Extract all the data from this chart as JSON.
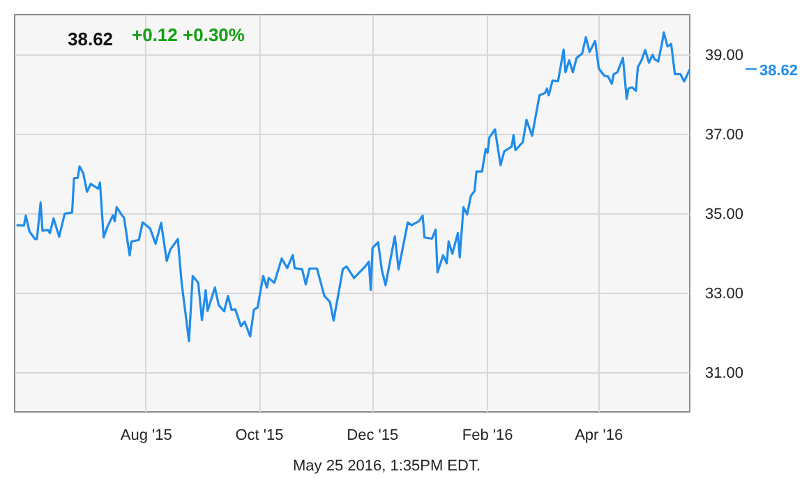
{
  "chart_data": {
    "type": "line",
    "title": "38.62",
    "subtitle": "+0.12  +0.30%",
    "x": [
      "2015-05-23",
      "2015-05-27",
      "2015-05-28",
      "2015-05-30",
      "2015-06-02",
      "2015-06-03",
      "2015-06-05",
      "2015-06-06",
      "2015-06-09",
      "2015-06-10",
      "2015-06-12",
      "2015-06-15",
      "2015-06-18",
      "2015-06-22",
      "2015-06-23",
      "2015-06-25",
      "2015-06-26",
      "2015-06-28",
      "2015-06-30",
      "2015-07-02",
      "2015-07-06",
      "2015-07-07",
      "2015-07-09",
      "2015-07-11",
      "2015-07-14",
      "2015-07-15",
      "2015-07-16",
      "2015-07-19",
      "2015-07-20",
      "2015-07-23",
      "2015-07-24",
      "2015-07-28",
      "2015-07-30",
      "2015-08-03",
      "2015-08-06",
      "2015-08-09",
      "2015-08-12",
      "2015-08-14",
      "2015-08-18",
      "2015-08-20",
      "2015-08-24",
      "2015-08-26",
      "2015-08-29",
      "2015-08-31",
      "2015-09-02",
      "2015-09-03",
      "2015-09-07",
      "2015-09-09",
      "2015-09-12",
      "2015-09-14",
      "2015-09-16",
      "2015-09-18",
      "2015-09-21",
      "2015-09-23",
      "2015-09-26",
      "2015-09-28",
      "2015-09-30",
      "2015-10-03",
      "2015-10-05",
      "2015-10-06",
      "2015-10-09",
      "2015-10-13",
      "2015-10-16",
      "2015-10-19",
      "2015-10-20",
      "2015-10-24",
      "2015-10-26",
      "2015-10-28",
      "2015-11-01",
      "2015-11-05",
      "2015-11-08",
      "2015-11-10",
      "2015-11-15",
      "2015-11-17",
      "2015-11-21",
      "2015-11-27",
      "2015-11-29",
      "2015-11-30",
      "2015-12-01",
      "2015-12-04",
      "2015-12-06",
      "2015-12-08",
      "2015-12-13",
      "2015-12-15",
      "2015-12-20",
      "2015-12-22",
      "2015-12-26",
      "2015-12-28",
      "2015-12-29",
      "2016-01-02",
      "2016-01-04",
      "2016-01-05",
      "2016-01-08",
      "2016-01-10",
      "2016-01-11",
      "2016-01-13",
      "2016-01-16",
      "2016-01-17",
      "2016-01-19",
      "2016-01-21",
      "2016-01-23",
      "2016-01-25",
      "2016-01-26",
      "2016-01-29",
      "2016-01-31",
      "2016-02-01",
      "2016-02-02",
      "2016-02-05",
      "2016-02-08",
      "2016-02-10",
      "2016-02-14",
      "2016-02-15",
      "2016-02-16",
      "2016-02-20",
      "2016-02-22",
      "2016-02-25",
      "2016-02-29",
      "2016-03-03",
      "2016-03-04",
      "2016-03-05",
      "2016-03-07",
      "2016-03-10",
      "2016-03-13",
      "2016-03-14",
      "2016-03-16",
      "2016-03-18",
      "2016-03-20",
      "2016-03-23",
      "2016-03-25",
      "2016-03-27",
      "2016-03-30",
      "2016-04-01",
      "2016-04-04",
      "2016-04-06",
      "2016-04-08",
      "2016-04-09",
      "2016-04-11",
      "2016-04-14",
      "2016-04-16",
      "2016-04-17",
      "2016-04-19",
      "2016-04-21",
      "2016-04-22",
      "2016-04-24",
      "2016-04-26",
      "2016-04-28",
      "2016-04-30",
      "2016-05-01",
      "2016-05-03",
      "2016-05-05",
      "2016-05-06",
      "2016-05-08",
      "2016-05-10",
      "2016-05-12",
      "2016-05-15",
      "2016-05-17",
      "2016-05-20"
    ],
    "series": [
      {
        "color": "#1f8ceb",
        "values": [
          34.7,
          34.69,
          34.94,
          34.54,
          34.35,
          34.35,
          35.27,
          34.56,
          34.58,
          34.5,
          34.87,
          34.41,
          34.99,
          35.02,
          35.88,
          35.89,
          36.18,
          36.01,
          35.54,
          35.74,
          35.62,
          35.77,
          34.39,
          34.66,
          34.95,
          34.8,
          35.15,
          34.94,
          34.89,
          33.94,
          34.29,
          34.33,
          34.77,
          34.62,
          34.23,
          34.76,
          33.8,
          34.09,
          34.35,
          33.27,
          31.78,
          33.42,
          33.25,
          32.31,
          33.06,
          32.54,
          33.13,
          32.69,
          32.53,
          32.92,
          32.57,
          32.58,
          32.16,
          32.27,
          31.9,
          32.57,
          32.63,
          33.42,
          33.13,
          33.37,
          33.25,
          33.86,
          33.62,
          33.95,
          33.62,
          33.59,
          33.21,
          33.61,
          33.61,
          32.92,
          32.77,
          32.3,
          33.6,
          33.66,
          33.37,
          33.66,
          33.78,
          33.07,
          34.13,
          34.27,
          33.57,
          33.19,
          34.42,
          33.59,
          34.77,
          34.7,
          34.8,
          34.94,
          34.39,
          34.36,
          34.59,
          33.51,
          33.94,
          33.74,
          34.29,
          33.98,
          34.5,
          33.89,
          35.15,
          34.97,
          35.44,
          35.56,
          36.05,
          36.05,
          36.62,
          36.52,
          36.91,
          37.11,
          36.21,
          36.56,
          36.68,
          36.97,
          36.59,
          36.79,
          37.35,
          36.95,
          37.97,
          38.03,
          38.14,
          37.97,
          38.34,
          38.32,
          39.12,
          38.55,
          38.85,
          38.55,
          38.91,
          39.02,
          39.43,
          39.06,
          39.34,
          38.64,
          38.46,
          38.44,
          38.26,
          38.5,
          38.55,
          38.91,
          37.88,
          38.14,
          38.17,
          38.08,
          38.67,
          38.85,
          39.11,
          38.79,
          38.99,
          38.88,
          38.82,
          39.26,
          39.55,
          39.2,
          39.26,
          38.5,
          38.5,
          38.32,
          38.62
        ]
      }
    ],
    "xlim": [
      "2015-05-22",
      "2016-05-20"
    ],
    "xticks": [
      {
        "value": "2015-08-01",
        "label": "Aug '15"
      },
      {
        "value": "2015-10-01",
        "label": "Oct '15"
      },
      {
        "value": "2015-12-01",
        "label": "Dec '15"
      },
      {
        "value": "2016-02-01",
        "label": "Feb '16"
      },
      {
        "value": "2016-04-01",
        "label": "Apr '16"
      }
    ],
    "ylim": [
      30,
      40
    ],
    "yticks": [
      {
        "value": 31,
        "label": "31.00"
      },
      {
        "value": 33,
        "label": "33.00"
      },
      {
        "value": 35,
        "label": "35.00"
      },
      {
        "value": 37,
        "label": "37.00"
      },
      {
        "value": 39,
        "label": "39.00"
      }
    ],
    "grid": true,
    "line_style": "solid",
    "annotations": [
      "38.62",
      "May 25 2016, 1:35PM EDT."
    ]
  }
}
